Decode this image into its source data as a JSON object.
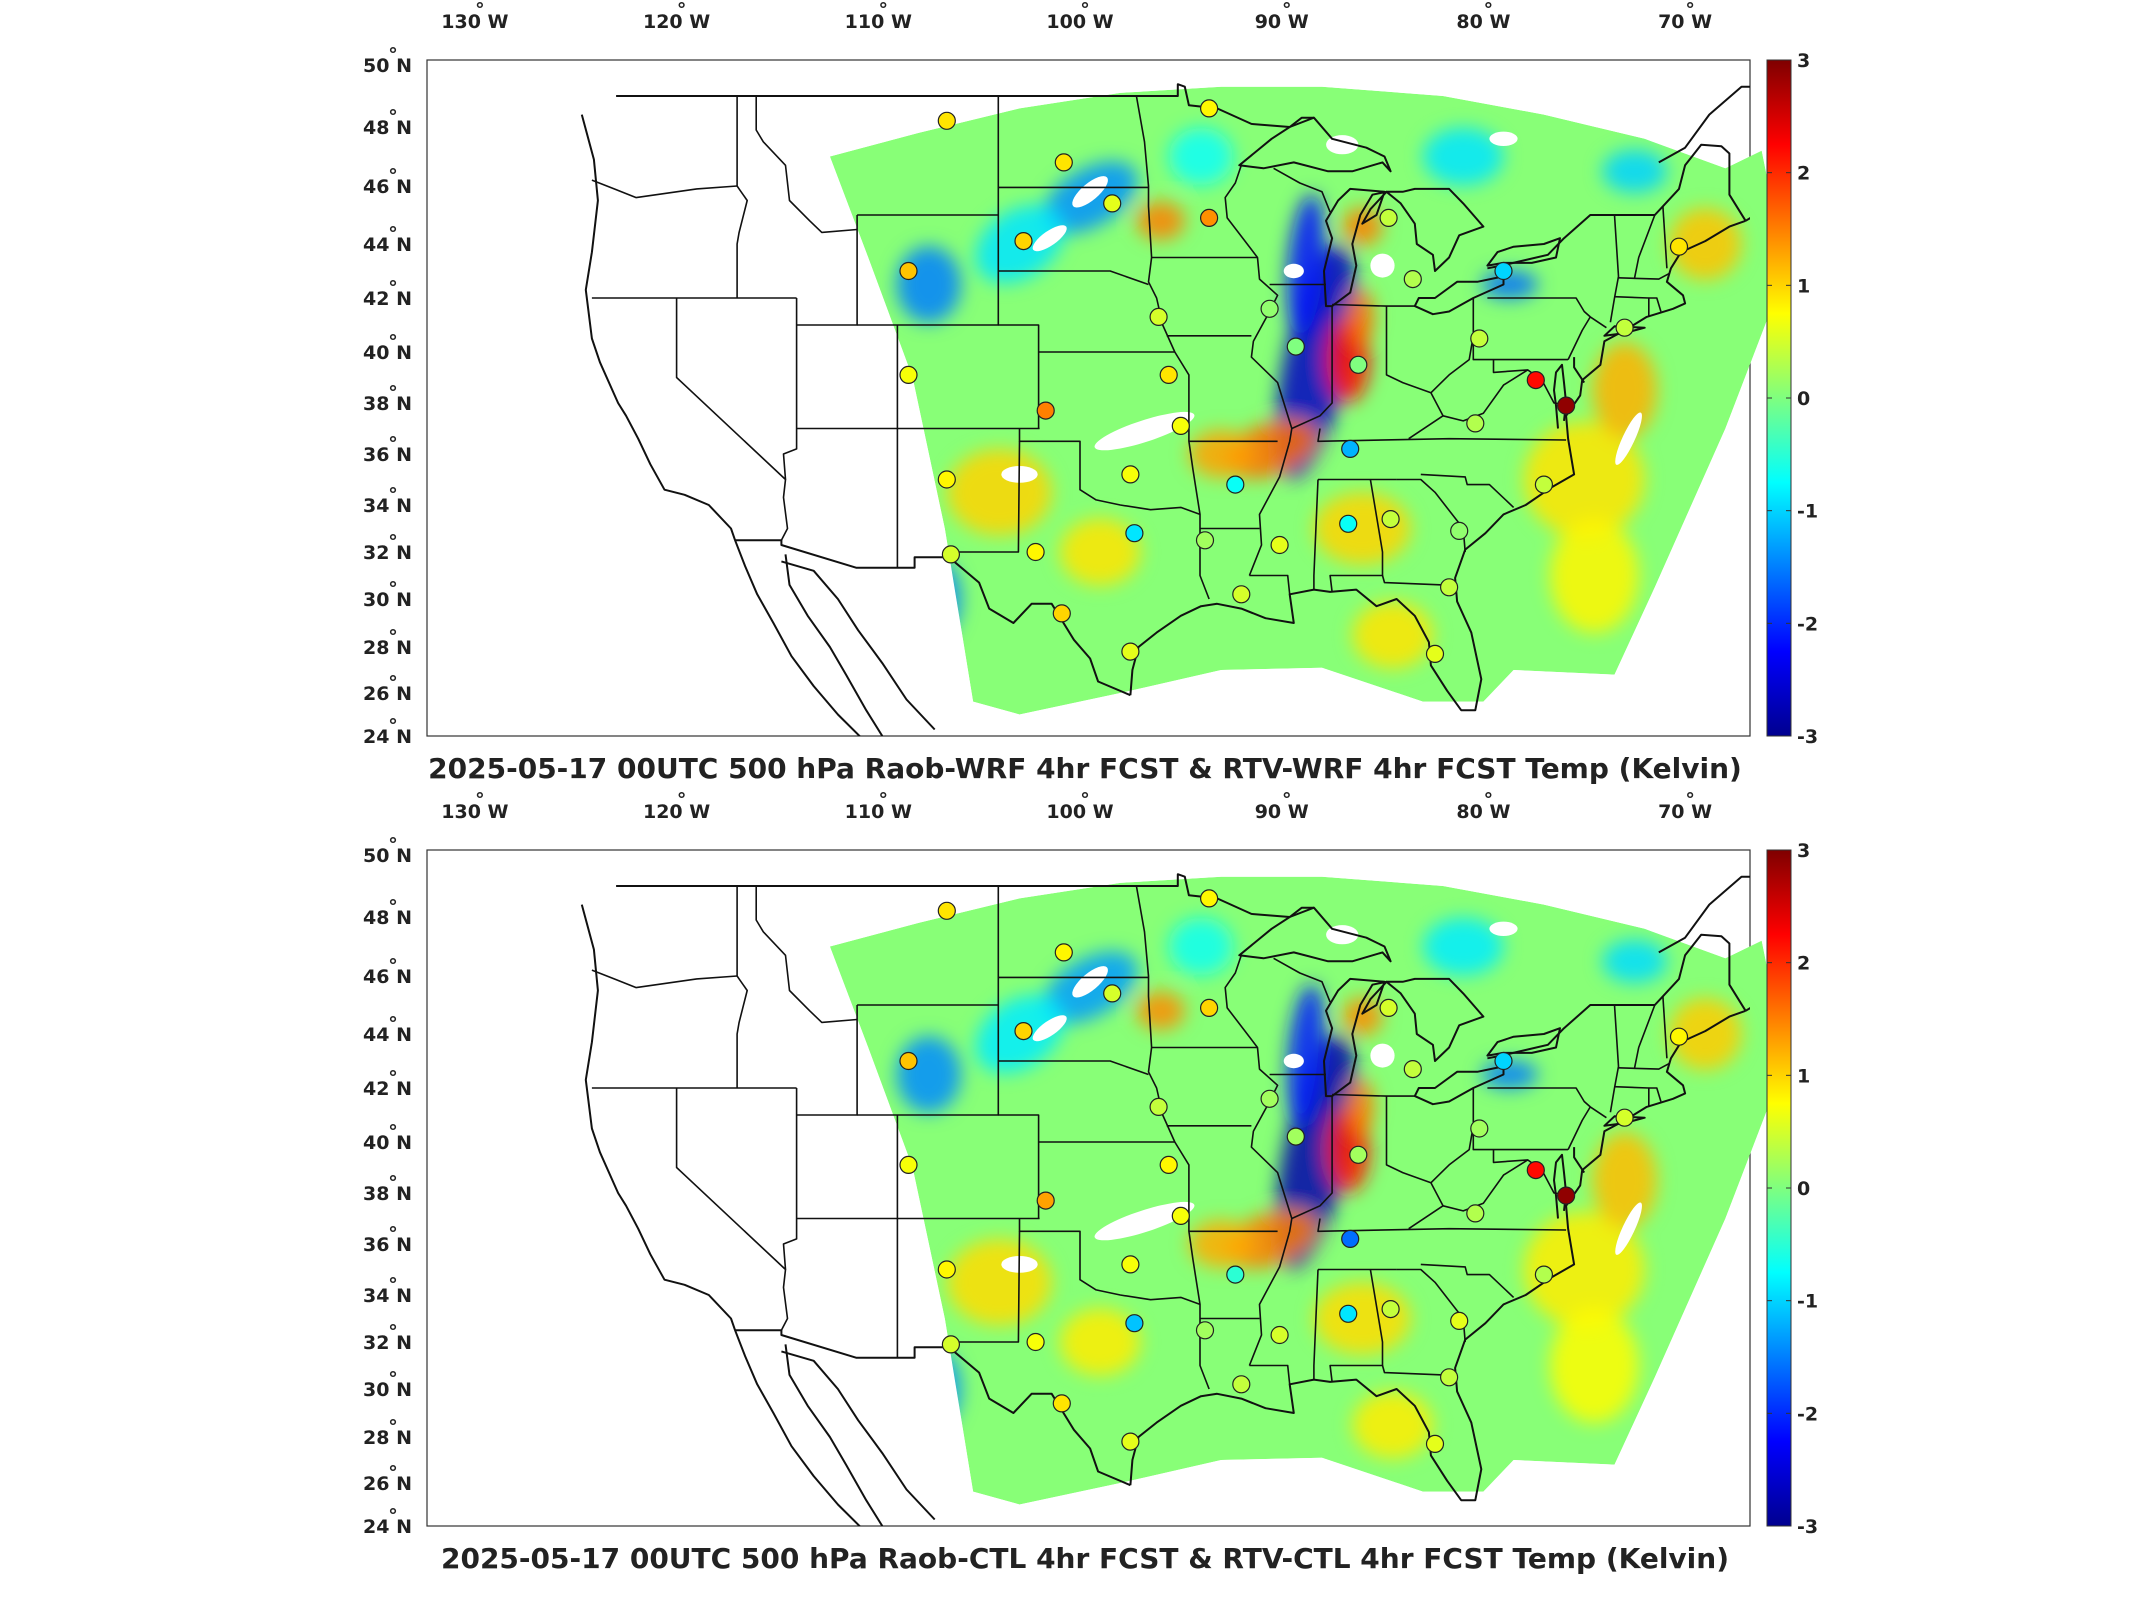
{
  "colorbar": {
    "ticks": [
      "3",
      "2",
      "1",
      "0",
      "-1",
      "-2",
      "-3"
    ],
    "colormap": [
      "#00008f",
      "#0000ff",
      "#007fff",
      "#00ffff",
      "#7fff7f",
      "#ffff00",
      "#ff7f00",
      "#ff0000",
      "#7f0000"
    ]
  },
  "axes": {
    "lon_labels": [
      "130",
      "120",
      "110",
      "100",
      "90",
      "80",
      "70"
    ],
    "lat_labels": [
      "50",
      "48",
      "46",
      "44",
      "42",
      "40",
      "38",
      "36",
      "34",
      "32",
      "30",
      "28",
      "26",
      "24"
    ],
    "lon_hemisphere": "W",
    "lat_hemisphere": "N",
    "degree_symbol": "°"
  },
  "panels": [
    {
      "title": "2025-05-17 00UTC 500 hPa Raob-WRF 4hr FCST & RTV-WRF 4hr FCST Temp (Kelvin)",
      "stations": [
        {
          "lon": -106.6,
          "lat": 48.2,
          "value": 0.9
        },
        {
          "lon": -100.8,
          "lat": 46.8,
          "value": 0.9
        },
        {
          "lon": -93.6,
          "lat": 48.6,
          "value": 0.8
        },
        {
          "lon": -98.4,
          "lat": 45.4,
          "value": 0.6
        },
        {
          "lon": -93.6,
          "lat": 44.9,
          "value": 1.4
        },
        {
          "lon": -102.8,
          "lat": 44.1,
          "value": 1.0
        },
        {
          "lon": -108.5,
          "lat": 43.0,
          "value": 1.1
        },
        {
          "lon": -84.7,
          "lat": 44.9,
          "value": 0.4
        },
        {
          "lon": -83.5,
          "lat": 42.7,
          "value": 0.3
        },
        {
          "lon": -79.0,
          "lat": 43.0,
          "value": -1.0
        },
        {
          "lon": -70.3,
          "lat": 43.9,
          "value": 0.9
        },
        {
          "lon": -96.1,
          "lat": 41.3,
          "value": 0.5
        },
        {
          "lon": -90.6,
          "lat": 41.6,
          "value": 0.1
        },
        {
          "lon": -89.3,
          "lat": 40.2,
          "value": 0.0
        },
        {
          "lon": -86.2,
          "lat": 39.5,
          "value": 0.0
        },
        {
          "lon": -80.2,
          "lat": 40.5,
          "value": 0.4
        },
        {
          "lon": -73.0,
          "lat": 40.9,
          "value": 0.4
        },
        {
          "lon": -108.5,
          "lat": 39.1,
          "value": 0.7
        },
        {
          "lon": -95.6,
          "lat": 39.1,
          "value": 0.9
        },
        {
          "lon": -101.7,
          "lat": 37.7,
          "value": 1.5
        },
        {
          "lon": -77.4,
          "lat": 38.9,
          "value": 2.2
        },
        {
          "lon": -75.9,
          "lat": 37.9,
          "value": 2.9
        },
        {
          "lon": -95.0,
          "lat": 37.1,
          "value": 0.7
        },
        {
          "lon": -86.6,
          "lat": 36.2,
          "value": -1.2
        },
        {
          "lon": -80.4,
          "lat": 37.2,
          "value": 0.3
        },
        {
          "lon": -106.6,
          "lat": 35.0,
          "value": 0.8
        },
        {
          "lon": -97.5,
          "lat": 35.2,
          "value": 0.7
        },
        {
          "lon": -92.3,
          "lat": 34.8,
          "value": -0.7
        },
        {
          "lon": -77.0,
          "lat": 34.8,
          "value": 0.4
        },
        {
          "lon": -84.6,
          "lat": 33.4,
          "value": 0.4
        },
        {
          "lon": -86.7,
          "lat": 33.2,
          "value": -0.7
        },
        {
          "lon": -97.3,
          "lat": 32.8,
          "value": -0.9
        },
        {
          "lon": -93.8,
          "lat": 32.5,
          "value": 0.2
        },
        {
          "lon": -90.1,
          "lat": 32.3,
          "value": 0.6
        },
        {
          "lon": -81.2,
          "lat": 32.9,
          "value": 0.1
        },
        {
          "lon": -106.4,
          "lat": 31.9,
          "value": 0.5
        },
        {
          "lon": -102.2,
          "lat": 32.0,
          "value": 0.8
        },
        {
          "lon": -92.0,
          "lat": 30.2,
          "value": 0.5
        },
        {
          "lon": -81.7,
          "lat": 30.5,
          "value": 0.4
        },
        {
          "lon": -100.9,
          "lat": 29.4,
          "value": 1.0
        },
        {
          "lon": -97.5,
          "lat": 27.8,
          "value": 0.6
        },
        {
          "lon": -82.4,
          "lat": 27.7,
          "value": 0.6
        }
      ]
    },
    {
      "title": "2025-05-17 00UTC 500 hPa Raob-CTL 4hr FCST & RTV-CTL 4hr FCST Temp (Kelvin)",
      "stations": [
        {
          "lon": -106.6,
          "lat": 48.2,
          "value": 0.9
        },
        {
          "lon": -100.8,
          "lat": 46.8,
          "value": 0.8
        },
        {
          "lon": -93.6,
          "lat": 48.6,
          "value": 0.8
        },
        {
          "lon": -98.4,
          "lat": 45.4,
          "value": 0.5
        },
        {
          "lon": -93.6,
          "lat": 44.9,
          "value": 1.0
        },
        {
          "lon": -102.8,
          "lat": 44.1,
          "value": 1.0
        },
        {
          "lon": -108.5,
          "lat": 43.0,
          "value": 1.1
        },
        {
          "lon": -84.7,
          "lat": 44.9,
          "value": 0.5
        },
        {
          "lon": -83.5,
          "lat": 42.7,
          "value": 0.4
        },
        {
          "lon": -79.0,
          "lat": 43.0,
          "value": -1.0
        },
        {
          "lon": -70.3,
          "lat": 43.9,
          "value": 0.8
        },
        {
          "lon": -96.1,
          "lat": 41.3,
          "value": 0.4
        },
        {
          "lon": -90.6,
          "lat": 41.6,
          "value": 0.2
        },
        {
          "lon": -89.3,
          "lat": 40.2,
          "value": 0.2
        },
        {
          "lon": -86.2,
          "lat": 39.5,
          "value": 0.2
        },
        {
          "lon": -80.2,
          "lat": 40.5,
          "value": 0.2
        },
        {
          "lon": -73.0,
          "lat": 40.9,
          "value": 0.5
        },
        {
          "lon": -108.5,
          "lat": 39.1,
          "value": 0.7
        },
        {
          "lon": -95.6,
          "lat": 39.1,
          "value": 0.8
        },
        {
          "lon": -101.7,
          "lat": 37.7,
          "value": 1.3
        },
        {
          "lon": -77.4,
          "lat": 38.9,
          "value": 2.2
        },
        {
          "lon": -75.9,
          "lat": 37.9,
          "value": 2.9
        },
        {
          "lon": -95.0,
          "lat": 37.1,
          "value": 0.7
        },
        {
          "lon": -86.6,
          "lat": 36.2,
          "value": -1.6
        },
        {
          "lon": -80.4,
          "lat": 37.2,
          "value": 0.3
        },
        {
          "lon": -106.6,
          "lat": 35.0,
          "value": 0.8
        },
        {
          "lon": -97.5,
          "lat": 35.2,
          "value": 0.7
        },
        {
          "lon": -92.3,
          "lat": 34.8,
          "value": -0.5
        },
        {
          "lon": -77.0,
          "lat": 34.8,
          "value": 0.3
        },
        {
          "lon": -84.6,
          "lat": 33.4,
          "value": 0.4
        },
        {
          "lon": -86.7,
          "lat": 33.2,
          "value": -0.9
        },
        {
          "lon": -97.3,
          "lat": 32.8,
          "value": -1.1
        },
        {
          "lon": -93.8,
          "lat": 32.5,
          "value": 0.2
        },
        {
          "lon": -90.1,
          "lat": 32.3,
          "value": 0.5
        },
        {
          "lon": -81.2,
          "lat": 32.9,
          "value": 0.6
        },
        {
          "lon": -106.4,
          "lat": 31.9,
          "value": 0.5
        },
        {
          "lon": -102.2,
          "lat": 32.0,
          "value": 0.7
        },
        {
          "lon": -92.0,
          "lat": 30.2,
          "value": 0.4
        },
        {
          "lon": -81.7,
          "lat": 30.5,
          "value": 0.4
        },
        {
          "lon": -100.9,
          "lat": 29.4,
          "value": 0.9
        },
        {
          "lon": -97.5,
          "lat": 27.8,
          "value": 0.6
        },
        {
          "lon": -82.4,
          "lat": 27.7,
          "value": 0.6
        }
      ]
    }
  ]
}
